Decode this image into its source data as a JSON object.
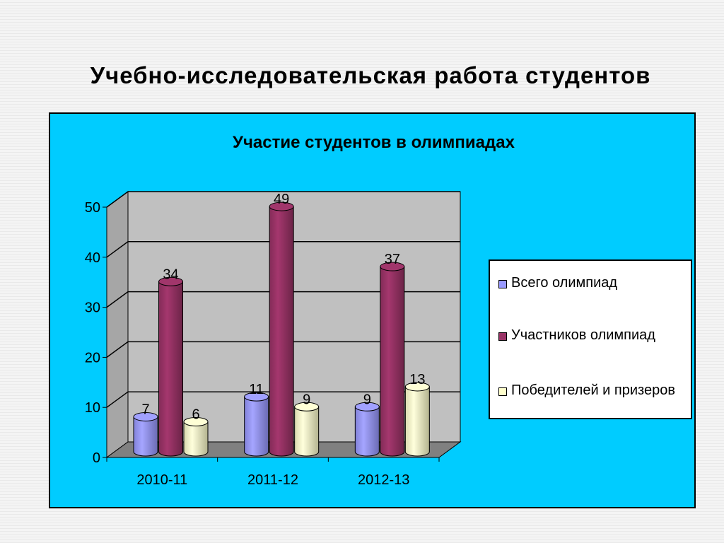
{
  "slide": {
    "title": "Учебно-исследовательская работа студентов"
  },
  "chart_data": {
    "type": "bar",
    "title": "Участие студентов в олимпиадах",
    "categories": [
      "2010-11",
      "2011-12",
      "2012-13"
    ],
    "series": [
      {
        "name": "Всего олимпиад",
        "values": [
          7,
          11,
          9
        ],
        "color": "#9999ff"
      },
      {
        "name": "Участников олимпиад",
        "values": [
          34,
          49,
          37
        ],
        "color": "#993366"
      },
      {
        "name": "Победителей и призеров",
        "values": [
          6,
          9,
          13
        ],
        "color": "#ffffcc"
      }
    ],
    "ylim": [
      0,
      50
    ],
    "yticks": [
      0,
      10,
      20,
      30,
      40,
      50
    ],
    "grid": true,
    "legend_position": "right",
    "colors": {
      "background": "#00ccff",
      "plot_wall": "#c0c0c0",
      "floor": "#808080"
    }
  }
}
